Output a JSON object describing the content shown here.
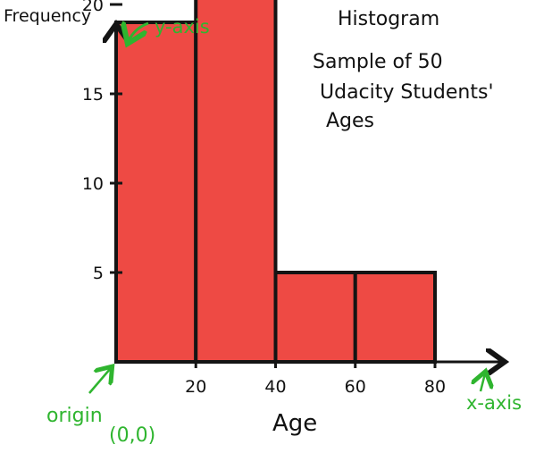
{
  "chart_data": {
    "type": "bar",
    "title": "Histogram",
    "subtitle_lines": [
      "Sample of 50",
      "Udacity Students'",
      "Ages"
    ],
    "xlabel": "Age",
    "ylabel": "Frequency",
    "bins": [
      {
        "start": 0,
        "end": 20,
        "value": 19
      },
      {
        "start": 20,
        "end": 40,
        "value": 21
      },
      {
        "start": 40,
        "end": 60,
        "value": 5
      },
      {
        "start": 60,
        "end": 80,
        "value": 5
      }
    ],
    "xticks": [
      "20",
      "40",
      "60",
      "80"
    ],
    "yticks": [
      "5",
      "10",
      "15",
      "20"
    ],
    "ylim": [
      0,
      22
    ],
    "xlim": [
      0,
      90
    ],
    "annotations": {
      "y_axis": "y-axis",
      "x_axis": "x-axis",
      "origin": "origin",
      "origin_coord": "(0,0)"
    },
    "colors": {
      "bar_fill": "#ee4a44",
      "bar_stroke": "#141414",
      "annotation": "#2fb52f",
      "axis": "#141414"
    }
  }
}
